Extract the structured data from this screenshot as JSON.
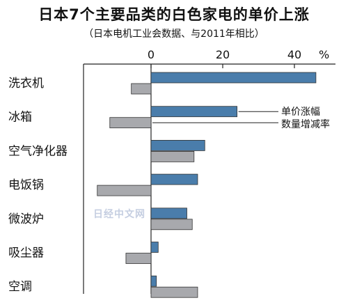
{
  "chart_data": {
    "type": "bar",
    "orientation": "horizontal",
    "title": "日本7个主要品类的白色家电的单价上涨",
    "subtitle": "（日本电机工业会数据、与2011年相比）",
    "unit": "%",
    "categories": [
      "洗衣机",
      "冰箱",
      "空气净化器",
      "电饭锅",
      "微波炉",
      "吸尘器",
      "空调"
    ],
    "series": [
      {
        "name": "单价涨幅",
        "values": [
          46,
          24,
          15,
          13,
          10,
          2,
          1.5
        ]
      },
      {
        "name": "数量增减率",
        "values": [
          -5.5,
          -11.5,
          12,
          -15,
          11.5,
          -7,
          13
        ]
      }
    ],
    "x_ticks": [
      0,
      20,
      40
    ],
    "xlim": [
      -18,
      50
    ],
    "grid": false,
    "colors": {
      "price": "#4a7dab",
      "qty": "#a8a9ad"
    }
  },
  "watermark": "日经中文网"
}
